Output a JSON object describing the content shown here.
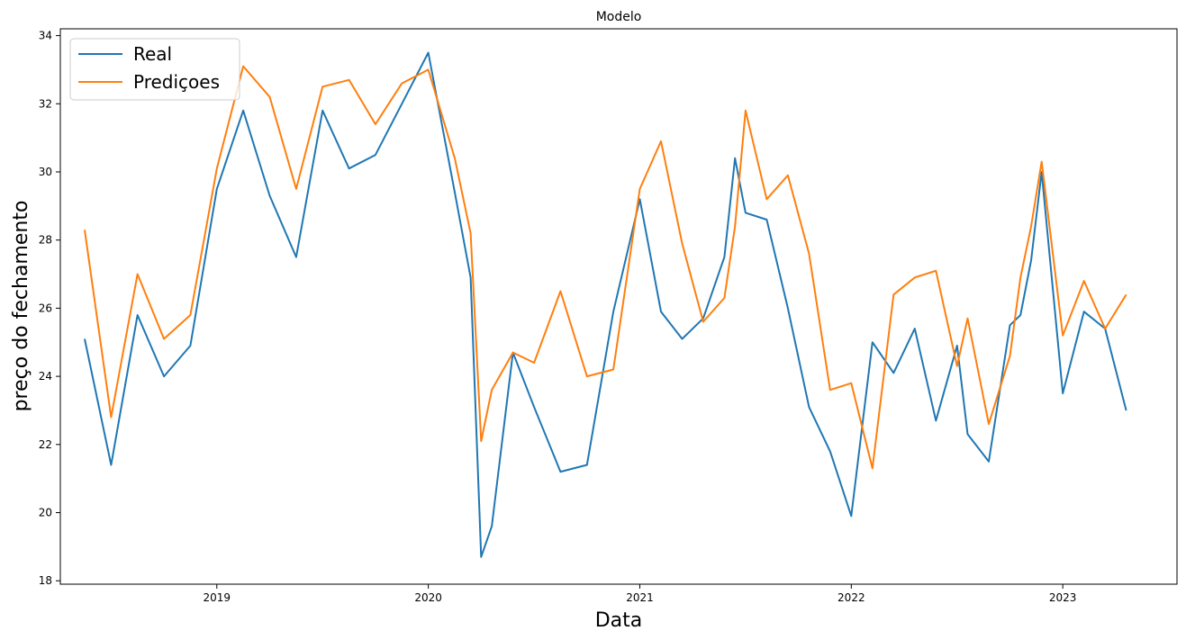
{
  "chart_data": {
    "type": "line",
    "title": "Modelo",
    "xlabel": "Data",
    "ylabel": "preço do fechamento",
    "x_ticks": [
      "2019",
      "2020",
      "2021",
      "2022",
      "2023"
    ],
    "y_ticks": [
      18,
      20,
      22,
      24,
      26,
      28,
      30,
      32,
      34
    ],
    "xlim": [
      2018.26,
      2023.54
    ],
    "ylim": [
      17.9,
      34.2
    ],
    "legend_position": "top-left",
    "grid": false,
    "x": [
      2018.375,
      2018.5,
      2018.625,
      2018.75,
      2018.875,
      2019.0,
      2019.125,
      2019.25,
      2019.375,
      2019.5,
      2019.625,
      2019.75,
      2019.875,
      2020.0,
      2020.125,
      2020.2,
      2020.25,
      2020.3,
      2020.4,
      2020.5,
      2020.625,
      2020.75,
      2020.875,
      2021.0,
      2021.1,
      2021.2,
      2021.3,
      2021.4,
      2021.45,
      2021.5,
      2021.6,
      2021.7,
      2021.8,
      2021.9,
      2022.0,
      2022.1,
      2022.2,
      2022.3,
      2022.4,
      2022.5,
      2022.55,
      2022.65,
      2022.75,
      2022.8,
      2022.85,
      2022.9,
      2023.0,
      2023.1,
      2023.2,
      2023.3
    ],
    "series": [
      {
        "name": "Real",
        "color": "#1f77b4",
        "values": [
          25.1,
          21.4,
          25.8,
          24.0,
          24.9,
          29.5,
          31.8,
          29.3,
          27.5,
          31.8,
          30.1,
          30.5,
          32.0,
          33.5,
          29.4,
          26.9,
          18.7,
          19.6,
          24.7,
          23.1,
          21.2,
          21.4,
          25.9,
          29.2,
          25.9,
          25.1,
          25.7,
          27.5,
          30.4,
          28.8,
          28.6,
          26.0,
          23.1,
          21.8,
          19.9,
          25.0,
          24.1,
          25.4,
          22.7,
          24.9,
          22.3,
          21.5,
          25.5,
          25.8,
          27.4,
          30.0,
          23.5,
          25.9,
          25.4,
          23.0
        ]
      },
      {
        "name": "Prediçoes",
        "color": "#ff7f0e",
        "values": [
          28.3,
          22.8,
          27.0,
          25.1,
          25.8,
          30.1,
          33.1,
          32.2,
          29.5,
          32.5,
          32.7,
          31.4,
          32.6,
          33.0,
          30.4,
          28.2,
          22.1,
          23.6,
          24.7,
          24.4,
          26.5,
          24.0,
          24.2,
          29.5,
          30.9,
          27.9,
          25.6,
          26.3,
          28.4,
          31.8,
          29.2,
          29.9,
          27.6,
          23.6,
          23.8,
          21.3,
          26.4,
          26.9,
          27.1,
          24.3,
          25.7,
          22.6,
          24.6,
          26.9,
          28.4,
          30.3,
          25.2,
          26.8,
          25.4,
          26.4
        ]
      }
    ]
  }
}
